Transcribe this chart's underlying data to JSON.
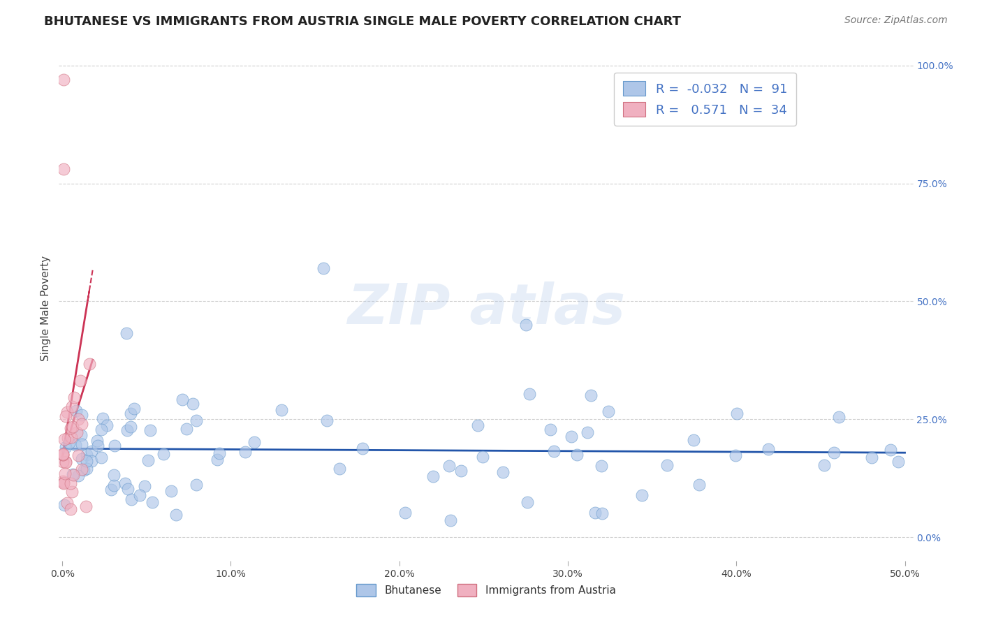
{
  "title": "BHUTANESE VS IMMIGRANTS FROM AUSTRIA SINGLE MALE POVERTY CORRELATION CHART",
  "source": "Source: ZipAtlas.com",
  "ylabel": "Single Male Poverty",
  "xlim": [
    -0.002,
    0.505
  ],
  "ylim": [
    -0.05,
    1.02
  ],
  "xticks": [
    0.0,
    0.1,
    0.2,
    0.3,
    0.4,
    0.5
  ],
  "yticks_right": [
    0.0,
    0.25,
    0.5,
    0.75,
    1.0
  ],
  "ytick_labels_right": [
    "0.0%",
    "25.0%",
    "50.0%",
    "75.0%",
    "100.0%"
  ],
  "xtick_labels": [
    "0.0%",
    "10.0%",
    "20.0%",
    "30.0%",
    "40.0%",
    "50.0%"
  ],
  "blue_color": "#aec6e8",
  "blue_edge": "#6699cc",
  "blue_line": "#2255aa",
  "pink_color": "#f0b0c0",
  "pink_edge": "#d07080",
  "pink_line": "#cc3355",
  "background_color": "#ffffff",
  "grid_color": "#bbbbbb",
  "blue_R": -0.032,
  "blue_N": 91,
  "pink_R": 0.571,
  "pink_N": 34,
  "blue_name": "Bhutanese",
  "pink_name": "Immigrants from Austria",
  "legend_text_color": "#4472c4",
  "watermark_color": "#b0c8e8"
}
